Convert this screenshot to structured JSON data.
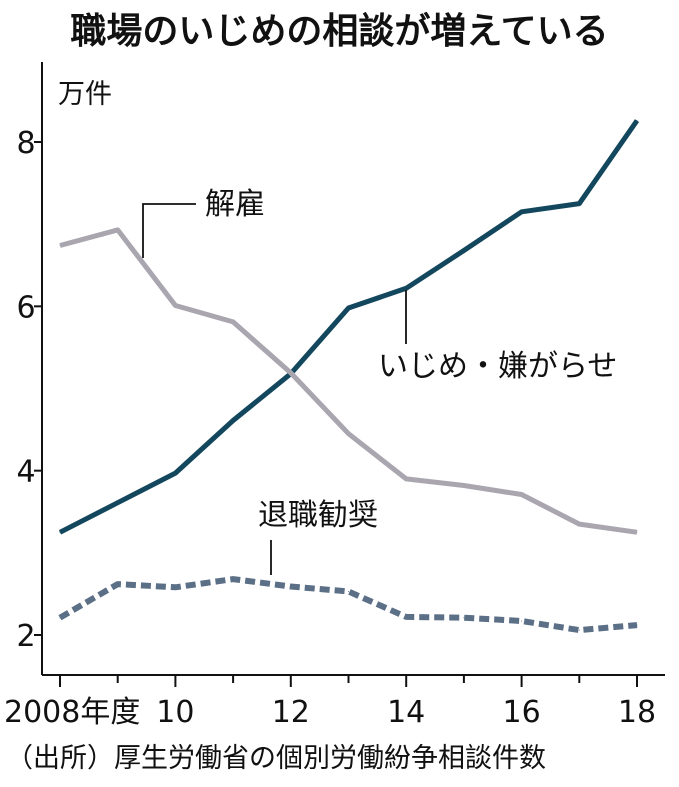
{
  "title": "職場のいじめの相談が増えている",
  "source": "（出所）厚生労働省の個別労働紛争相談件数",
  "chart_data": {
    "type": "line",
    "y_unit": "万件",
    "x": [
      2008,
      2009,
      2010,
      2011,
      2012,
      2013,
      2014,
      2015,
      2016,
      2017,
      2018
    ],
    "x_ticks": [
      {
        "value": 2008,
        "label": "2008年度"
      },
      {
        "value": 2010,
        "label": "10"
      },
      {
        "value": 2012,
        "label": "12"
      },
      {
        "value": 2014,
        "label": "14"
      },
      {
        "value": 2016,
        "label": "16"
      },
      {
        "value": 2018,
        "label": "18"
      }
    ],
    "y_ticks": [
      2,
      4,
      6,
      8
    ],
    "xlim": [
      2008,
      2018
    ],
    "ylim": [
      1.7,
      9.2
    ],
    "grid": false,
    "series": [
      {
        "name": "いじめ・嫌がらせ",
        "color": "#13475e",
        "style": "solid",
        "values": [
          3.25,
          3.61,
          3.97,
          4.61,
          5.18,
          5.98,
          6.22,
          6.68,
          7.15,
          7.25,
          8.26
        ]
      },
      {
        "name": "解雇",
        "color": "#aaa6b0",
        "style": "solid",
        "values": [
          6.74,
          6.93,
          6.01,
          5.81,
          5.19,
          4.45,
          3.9,
          3.82,
          3.71,
          3.35,
          3.25
        ]
      },
      {
        "name": "退職勧奨",
        "color": "#5b6f86",
        "style": "dashed",
        "values": [
          2.21,
          2.62,
          2.58,
          2.68,
          2.59,
          2.53,
          2.22,
          2.21,
          2.17,
          2.06,
          2.12
        ]
      }
    ]
  }
}
